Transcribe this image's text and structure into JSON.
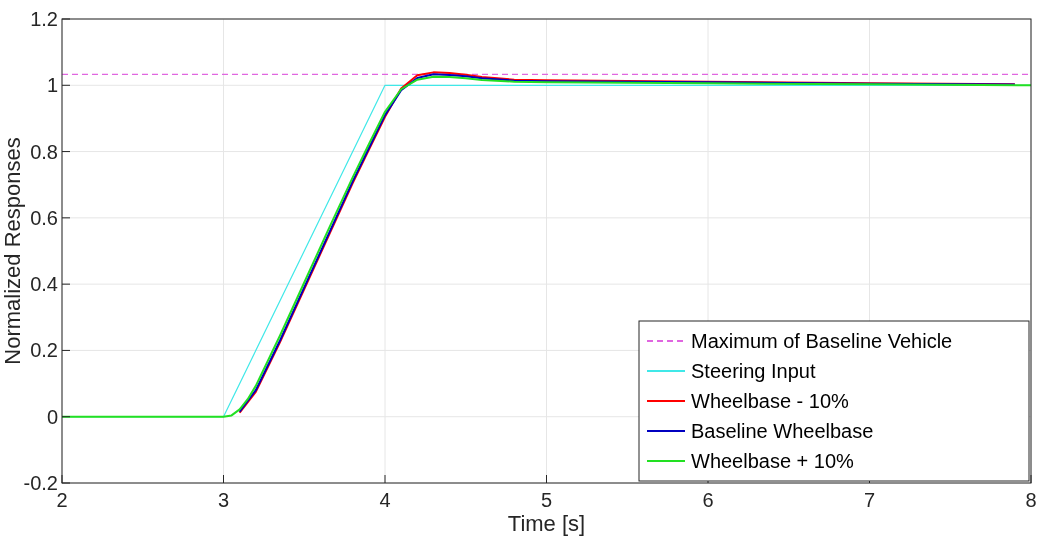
{
  "chart_data": {
    "type": "line",
    "xlabel": "Time [s]",
    "ylabel": "Normalized Responses",
    "xlim": [
      2,
      8
    ],
    "ylim": [
      -0.2,
      1.2
    ],
    "xticks": [
      2,
      3,
      4,
      5,
      6,
      7,
      8
    ],
    "yticks": [
      -0.2,
      0,
      0.2,
      0.4,
      0.6,
      0.8,
      1,
      1.2
    ],
    "grid": true,
    "legend": "bottom right",
    "series": [
      {
        "name": "Maximum of Baseline Vehicle",
        "color": "#e066e0",
        "line_style": "dashed",
        "x": [
          2,
          8
        ],
        "values": [
          1.033,
          1.033
        ]
      },
      {
        "name": "Steering Input",
        "color": "#40e8e8",
        "x": [
          2,
          3,
          4,
          8
        ],
        "values": [
          0,
          0,
          1,
          1
        ]
      },
      {
        "name": "Wheelbase - 10%",
        "color": "#ff0000",
        "x": [
          3.1,
          3.2,
          3.35,
          3.5,
          3.65,
          3.8,
          3.9,
          4,
          4.1,
          4.2,
          4.3,
          4.4,
          4.5,
          4.6,
          4.8,
          5,
          6,
          7,
          7.9
        ],
        "values": [
          0.012,
          0.075,
          0.225,
          0.385,
          0.545,
          0.705,
          0.805,
          0.905,
          0.99,
          1.03,
          1.039,
          1.037,
          1.032,
          1.025,
          1.017,
          1.015,
          1.011,
          1.006,
          1.003
        ]
      },
      {
        "name": "Baseline Wheelbase",
        "color": "#0000c0",
        "x": [
          3.1,
          3.2,
          3.35,
          3.5,
          3.65,
          3.8,
          3.9,
          4,
          4.1,
          4.2,
          4.3,
          4.4,
          4.5,
          4.6,
          4.8,
          5,
          6,
          7,
          7.9
        ],
        "values": [
          0.015,
          0.08,
          0.23,
          0.39,
          0.55,
          0.71,
          0.81,
          0.91,
          0.985,
          1.022,
          1.033,
          1.031,
          1.027,
          1.021,
          1.014,
          1.012,
          1.009,
          1.005,
          1.002
        ]
      },
      {
        "name": "Wheelbase + 10%",
        "color": "#22e022",
        "x": [
          2,
          3,
          3.05,
          3.1,
          3.15,
          3.2,
          3.35,
          3.5,
          3.65,
          3.8,
          3.9,
          4,
          4.1,
          4.2,
          4.3,
          4.4,
          4.5,
          4.6,
          4.8,
          5,
          6,
          7,
          8
        ],
        "values": [
          0,
          0,
          0.004,
          0.022,
          0.053,
          0.093,
          0.245,
          0.405,
          0.565,
          0.722,
          0.822,
          0.92,
          0.988,
          1.017,
          1.026,
          1.025,
          1.021,
          1.016,
          1.011,
          1.009,
          1.006,
          1.003,
          1.0
        ]
      }
    ]
  }
}
